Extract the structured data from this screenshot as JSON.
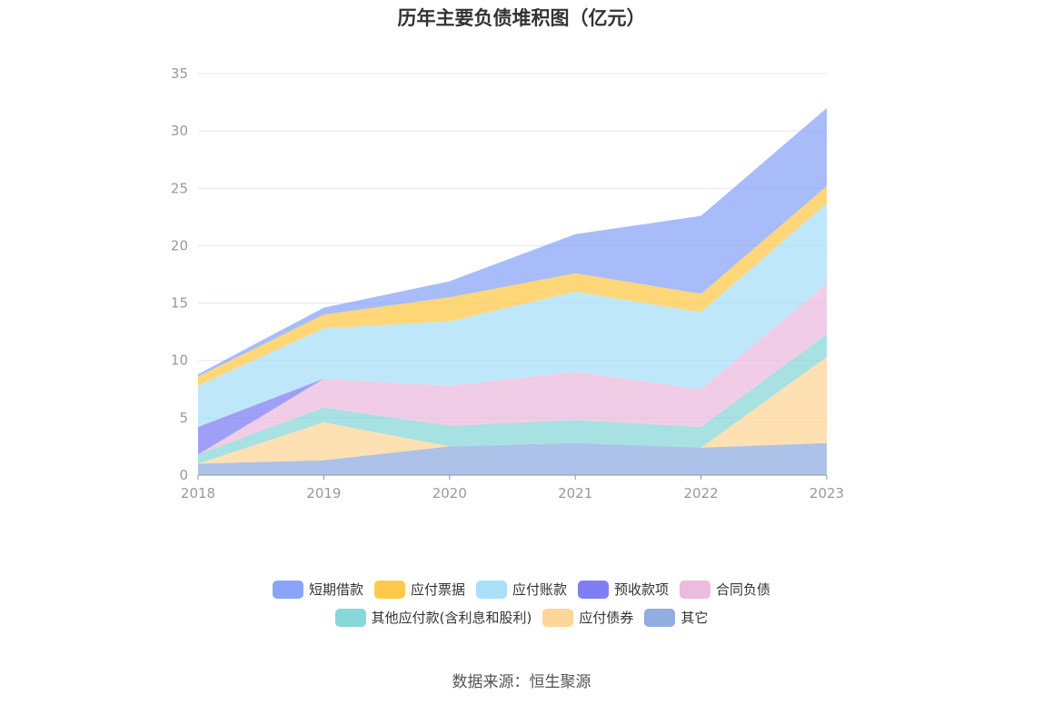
{
  "chart_data": {
    "type": "area",
    "stacked": true,
    "title": "历年主要负债堆积图（亿元）",
    "xlabel": "",
    "ylabel": "",
    "x": [
      "2018",
      "2019",
      "2020",
      "2021",
      "2022",
      "2023"
    ],
    "ylim": [
      0,
      35
    ],
    "yticks": [
      0,
      5,
      10,
      15,
      20,
      25,
      30,
      35
    ],
    "grid": true,
    "legend": "bottom",
    "series": [
      {
        "name": "其它",
        "color": "#90aee0",
        "values": [
          1.0,
          1.3,
          2.5,
          2.8,
          2.4,
          2.8
        ]
      },
      {
        "name": "应付债券",
        "color": "#ffd699",
        "values": [
          0.0,
          3.3,
          0.0,
          0.0,
          0.0,
          7.5
        ]
      },
      {
        "name": "其他应付款(含利息和股利)",
        "color": "#8ad7d8",
        "values": [
          0.8,
          1.3,
          1.8,
          2.0,
          1.8,
          2.0
        ]
      },
      {
        "name": "合同负债",
        "color": "#ecbbdf",
        "values": [
          0.0,
          2.5,
          3.5,
          4.2,
          3.3,
          4.4
        ]
      },
      {
        "name": "预收款项",
        "color": "#7f7ff5",
        "values": [
          2.4,
          0.0,
          0.0,
          0.0,
          0.0,
          0.0
        ]
      },
      {
        "name": "应付账款",
        "color": "#aadff8",
        "values": [
          3.6,
          4.4,
          5.6,
          7.0,
          6.7,
          7.0
        ]
      },
      {
        "name": "应付票据",
        "color": "#ffca4c",
        "values": [
          0.8,
          1.2,
          2.1,
          1.6,
          1.6,
          1.5
        ]
      },
      {
        "name": "短期借款",
        "color": "#8aa5f7",
        "values": [
          0.2,
          0.6,
          1.4,
          3.4,
          6.8,
          6.8
        ]
      }
    ],
    "source": "数据来源：恒生聚源"
  },
  "legend_rows": [
    [
      {
        "label": "短期借款",
        "color": "#8aa5f7"
      },
      {
        "label": "应付票据",
        "color": "#ffca4c"
      },
      {
        "label": "应付账款",
        "color": "#aadff8"
      },
      {
        "label": "预收款项",
        "color": "#7f7ff5"
      },
      {
        "label": "合同负债",
        "color": "#ecbbdf"
      }
    ],
    [
      {
        "label": "其他应付款(含利息和股利)",
        "color": "#8ad7d8"
      },
      {
        "label": "应付债券",
        "color": "#ffd699"
      },
      {
        "label": "其它",
        "color": "#90aee0"
      }
    ]
  ]
}
